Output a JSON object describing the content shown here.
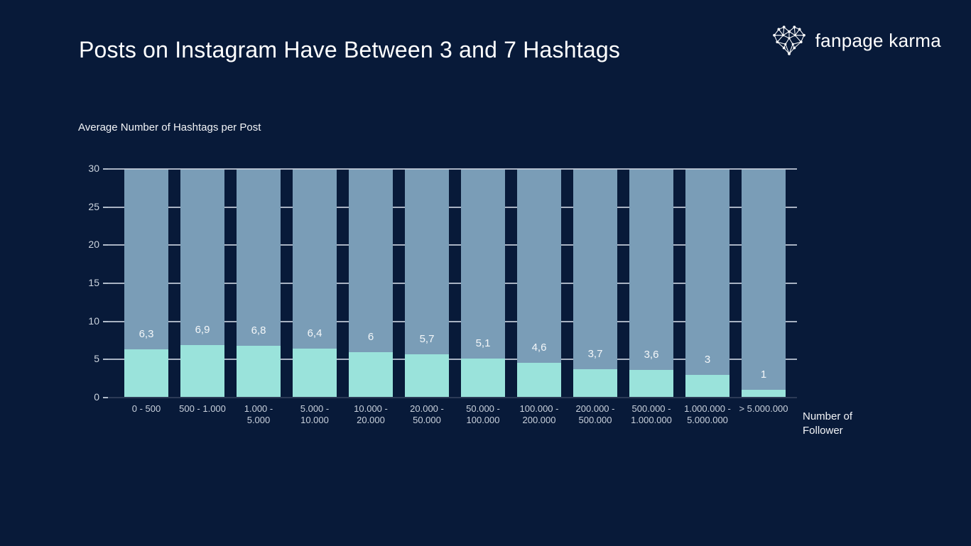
{
  "page": {
    "background": "#081a39"
  },
  "header": {
    "title": "Posts on Instagram Have Between 3 and 7 Hashtags",
    "logo_text": "fanpage karma",
    "logo_icon": "network-heart-icon"
  },
  "chart_data": {
    "type": "bar",
    "stacked": true,
    "title": "Posts on Instagram Have Between 3 and 7 Hashtags",
    "ylabel": "Average Number of Hashtags per Post",
    "xlabel": "Number of\nFollower",
    "ylim": [
      0,
      30
    ],
    "yticks": [
      0,
      5,
      10,
      15,
      20,
      25,
      30
    ],
    "grid": true,
    "legend": "none",
    "categories": [
      "0 - 500",
      "500 - 1.000",
      "1.000 -\n5.000",
      "5.000 -\n10.000",
      "10.000 -\n20.000",
      "20.000 -\n50.000",
      "50.000 -\n100.000",
      "100.000 -\n200.000",
      "200.000 -\n500.000",
      "500.000 -\n1.000.000",
      "1.000.000 -\n5.000.000",
      "> 5.000.000"
    ],
    "series": [
      {
        "name": "average-hashtags-per-post",
        "color": "#9ae3db",
        "values": [
          6.3,
          6.9,
          6.8,
          6.4,
          6,
          5.7,
          5.1,
          4.6,
          3.7,
          3.6,
          3,
          1
        ]
      },
      {
        "name": "remainder-up-to-30",
        "color": "#7a9db7",
        "note": "filler segment from value up to 30"
      }
    ],
    "value_labels": [
      "6,3",
      "6,9",
      "6,8",
      "6,4",
      "6",
      "5,7",
      "5,1",
      "4,6",
      "3,7",
      "3,6",
      "3",
      "1"
    ],
    "colors": {
      "background": "#081a39",
      "bar_bottom": "#9ae3db",
      "bar_top": "#7a9db7",
      "gridline": "#c4cedb",
      "zero_axis": "#2c3a56",
      "tick_label": "#ccd4de",
      "category_label": "#c9d1dc",
      "value_label": "#f4f7f9"
    }
  }
}
